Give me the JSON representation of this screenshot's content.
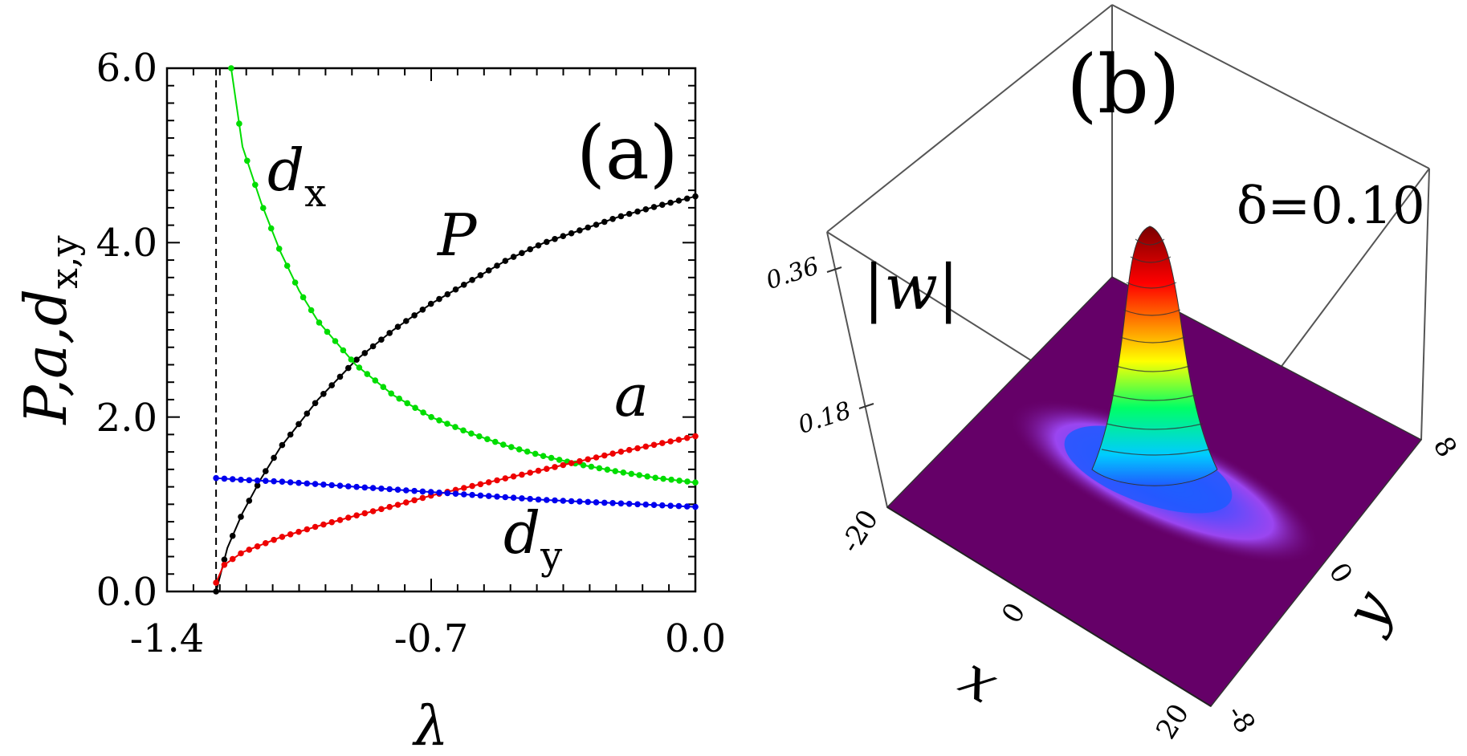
{
  "chart_data": [
    {
      "type": "line",
      "panel_label": "(a)",
      "xlabel": "λ",
      "ylabel": "P,a,d_{x,y}",
      "xlim": [
        -1.4,
        0.0
      ],
      "ylim": [
        0.0,
        6.0
      ],
      "x_ticks": [
        "-1.4",
        "-0.7",
        "0.0"
      ],
      "y_ticks": [
        "0.0",
        "2.0",
        "4.0",
        "6.0"
      ],
      "cutoff_lambda": -1.27,
      "series": [
        {
          "name": "P",
          "color": "#000000",
          "label": "P",
          "label_sub": "",
          "x": [
            -1.27,
            -1.24,
            -1.2,
            -1.15,
            -1.1,
            -1.0,
            -0.9,
            -0.8,
            -0.7,
            -0.6,
            -0.5,
            -0.4,
            -0.3,
            -0.2,
            -0.1,
            0.0
          ],
          "y": [
            0.0,
            0.5,
            0.9,
            1.3,
            1.65,
            2.2,
            2.65,
            3.0,
            3.3,
            3.55,
            3.8,
            4.0,
            4.15,
            4.3,
            4.42,
            4.53
          ]
        },
        {
          "name": "d_x",
          "color": "#00dd00",
          "label": "d",
          "label_sub": "x",
          "x": [
            -1.23,
            -1.2,
            -1.15,
            -1.1,
            -1.05,
            -1.0,
            -0.9,
            -0.8,
            -0.7,
            -0.6,
            -0.5,
            -0.4,
            -0.3,
            -0.2,
            -0.1,
            0.0
          ],
          "y": [
            6.0,
            5.1,
            4.45,
            3.9,
            3.45,
            3.1,
            2.6,
            2.25,
            2.0,
            1.82,
            1.67,
            1.55,
            1.45,
            1.37,
            1.3,
            1.25
          ]
        },
        {
          "name": "a",
          "color": "#ee0000",
          "label": "a",
          "label_sub": "",
          "x": [
            -1.27,
            -1.25,
            -1.2,
            -1.1,
            -1.0,
            -0.9,
            -0.8,
            -0.7,
            -0.6,
            -0.5,
            -0.4,
            -0.3,
            -0.2,
            -0.1,
            0.0
          ],
          "y": [
            0.1,
            0.3,
            0.45,
            0.62,
            0.75,
            0.87,
            0.98,
            1.1,
            1.2,
            1.3,
            1.4,
            1.5,
            1.6,
            1.69,
            1.78
          ]
        },
        {
          "name": "d_y",
          "color": "#0000ee",
          "label": "d",
          "label_sub": "y",
          "x": [
            -1.27,
            -1.2,
            -1.1,
            -1.0,
            -0.9,
            -0.8,
            -0.7,
            -0.6,
            -0.5,
            -0.4,
            -0.3,
            -0.2,
            -0.1,
            0.0
          ],
          "y": [
            1.3,
            1.28,
            1.26,
            1.23,
            1.2,
            1.17,
            1.14,
            1.11,
            1.08,
            1.05,
            1.03,
            1.01,
            0.99,
            0.97
          ]
        }
      ]
    },
    {
      "type": "surface3d",
      "panel_label": "(b)",
      "annotation": "δ=0.10",
      "zlabel": "|w|",
      "xlabel": "x",
      "ylabel": "y",
      "z_ticks": [
        "0.18",
        "0.36"
      ],
      "x_ticks": [
        "-20",
        "0",
        "20"
      ],
      "y_ticks": [
        "-8",
        "0",
        "8"
      ],
      "peak_value": 0.36,
      "colors": {
        "floor": "#650068",
        "peak_top": "#8b0000",
        "peak_mid": "#ffff00",
        "peak_low": "#00ccff",
        "glow": "#9b30ff"
      }
    }
  ]
}
